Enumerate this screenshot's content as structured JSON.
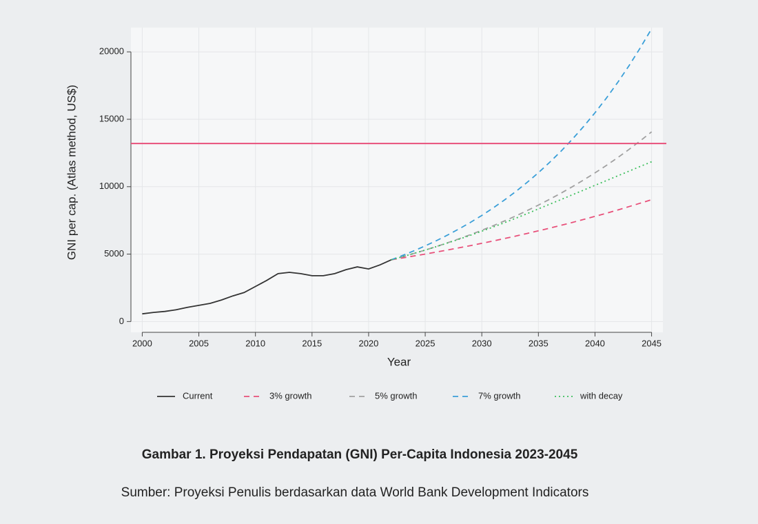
{
  "chart_data": {
    "type": "line",
    "x_label": "Year",
    "y_label": "GNI per cap. (Atlas method, US$)",
    "caption": "Gambar 1. Proyeksi Pendapatan (GNI) Per-Capita Indonesia 2023-2045",
    "source": "Sumber: Proyeksi Penulis berdasarkan data World Bank Development Indicators",
    "x": [
      2000,
      2001,
      2002,
      2003,
      2004,
      2005,
      2006,
      2007,
      2008,
      2009,
      2010,
      2011,
      2012,
      2013,
      2014,
      2015,
      2016,
      2017,
      2018,
      2019,
      2020,
      2021,
      2022,
      2023,
      2024,
      2025,
      2026,
      2027,
      2028,
      2029,
      2030,
      2031,
      2032,
      2033,
      2034,
      2035,
      2036,
      2037,
      2038,
      2039,
      2040,
      2041,
      2042,
      2043,
      2044,
      2045
    ],
    "series": [
      {
        "name": "Current",
        "color": "#333333",
        "style": "solid",
        "values": [
          570,
          680,
          750,
          870,
          1050,
          1200,
          1350,
          1600,
          1900,
          2150,
          2600,
          3050,
          3550,
          3650,
          3550,
          3400,
          3400,
          3550,
          3850,
          4050,
          3900,
          4200,
          4580,
          null,
          null,
          null,
          null,
          null,
          null,
          null,
          null,
          null,
          null,
          null,
          null,
          null,
          null,
          null,
          null,
          null,
          null,
          null,
          null,
          null,
          null,
          null
        ]
      },
      {
        "name": "3% growth",
        "color": "#e8507a",
        "style": "dashed",
        "values": [
          null,
          null,
          null,
          null,
          null,
          null,
          null,
          null,
          null,
          null,
          null,
          null,
          null,
          null,
          null,
          null,
          null,
          null,
          null,
          null,
          null,
          null,
          4580,
          4717,
          4859,
          5005,
          5155,
          5309,
          5469,
          5633,
          5802,
          5976,
          6155,
          6340,
          6530,
          6726,
          6928,
          7136,
          7350,
          7570,
          7798,
          8032,
          8272,
          8520,
          8776,
          9039
        ]
      },
      {
        "name": "5% growth",
        "color": "#a0a0a0",
        "style": "dashed",
        "values": [
          null,
          null,
          null,
          null,
          null,
          null,
          null,
          null,
          null,
          null,
          null,
          null,
          null,
          null,
          null,
          null,
          null,
          null,
          null,
          null,
          null,
          null,
          4580,
          4809,
          5049,
          5302,
          5567,
          5845,
          6138,
          6445,
          6767,
          7105,
          7460,
          7833,
          8225,
          8636,
          9068,
          9522,
          9998,
          10498,
          11023,
          11574,
          12152,
          12760,
          13398,
          14068
        ]
      },
      {
        "name": "7% growth",
        "color": "#3a9fd8",
        "style": "dashed",
        "values": [
          null,
          null,
          null,
          null,
          null,
          null,
          null,
          null,
          null,
          null,
          null,
          null,
          null,
          null,
          null,
          null,
          null,
          null,
          null,
          null,
          null,
          null,
          4580,
          4901,
          5244,
          5611,
          6003,
          6424,
          6873,
          7354,
          7869,
          8420,
          9010,
          9640,
          10315,
          11037,
          11810,
          12636,
          13521,
          14467,
          15480,
          16564,
          17723,
          18964,
          20291,
          21712
        ]
      },
      {
        "name": "with decay",
        "color": "#3cbf5c",
        "style": "dotted",
        "values": [
          null,
          null,
          null,
          null,
          null,
          null,
          null,
          null,
          null,
          null,
          null,
          null,
          null,
          null,
          null,
          null,
          null,
          null,
          null,
          null,
          null,
          null,
          4580,
          4810,
          5050,
          5300,
          5560,
          5830,
          6110,
          6400,
          6700,
          7010,
          7330,
          7660,
          8000,
          8350,
          8700,
          9050,
          9400,
          9750,
          10100,
          10450,
          10800,
          11150,
          11500,
          11850
        ]
      }
    ],
    "reference_line": {
      "value": 13205,
      "color": "#e8507a"
    },
    "xlim": [
      1999,
      2046
    ],
    "xticks": [
      2000,
      2005,
      2010,
      2015,
      2020,
      2025,
      2030,
      2035,
      2040,
      2045
    ],
    "ylim": [
      -800,
      21800
    ],
    "yticks": [
      0,
      5000,
      10000,
      15000,
      20000
    ],
    "grid": true
  }
}
